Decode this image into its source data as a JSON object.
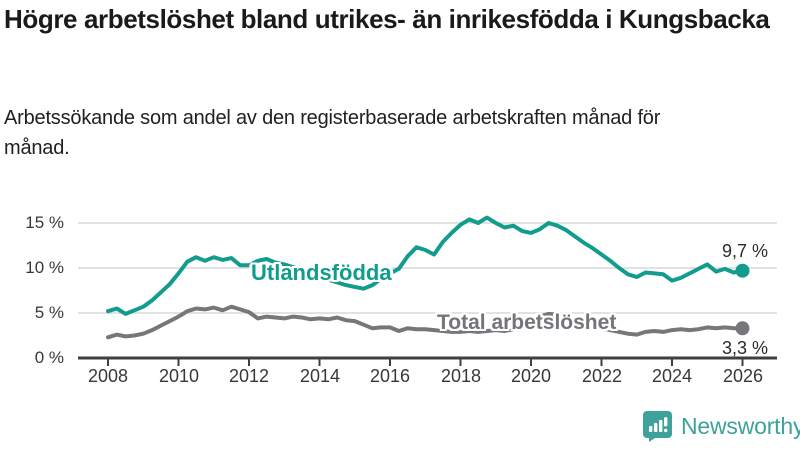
{
  "header": {
    "title": "Högre arbetslöshet bland utrikes- än inrikesfödda i Kungsbacka",
    "subtitle": "Arbetssökande som andel av den registerbaserade arbetskraften månad för månad."
  },
  "chart_data": {
    "type": "line",
    "title": "Högre arbetslöshet bland utrikes- än inrikesfödda i Kungsbacka",
    "subtitle": "Arbetssökande som andel av den registerbaserade arbetskraften månad för månad.",
    "x_start": 2008,
    "x_step_years": 0.25,
    "x_tick_labels": [
      "2008",
      "2010",
      "2012",
      "2014",
      "2016",
      "2018",
      "2020",
      "2022",
      "2024",
      "2026"
    ],
    "y_ticks": [
      {
        "value": 15,
        "label": "15 %"
      },
      {
        "value": 10,
        "label": "10 %"
      },
      {
        "value": 5,
        "label": "5 %"
      },
      {
        "value": 0,
        "label": "0 %"
      }
    ],
    "ylim": [
      0,
      16.5
    ],
    "grid": "horizontal",
    "legend_position": "inline-labels",
    "series": [
      {
        "name": "Utlandsfödda",
        "color": "#119c8e",
        "end_label": "9,7 %",
        "end_value": 9.7,
        "values": [
          5.2,
          5.5,
          4.9,
          5.3,
          5.7,
          6.4,
          7.3,
          8.2,
          9.4,
          10.7,
          11.2,
          10.8,
          11.2,
          10.9,
          11.1,
          10.3,
          10.3,
          10.8,
          11.0,
          10.6,
          10.4,
          10.1,
          9.8,
          9.4,
          9.0,
          8.7,
          8.4,
          8.1,
          7.9,
          7.7,
          8.1,
          8.8,
          9.4,
          9.9,
          11.3,
          12.3,
          12.0,
          11.5,
          12.9,
          13.9,
          14.8,
          15.4,
          15.0,
          15.6,
          15.0,
          14.5,
          14.7,
          14.1,
          13.9,
          14.3,
          15.0,
          14.7,
          14.2,
          13.5,
          12.8,
          12.2,
          11.5,
          10.8,
          10.0,
          9.3,
          9.0,
          9.5,
          9.4,
          9.3,
          8.6,
          8.9,
          9.4,
          9.9,
          10.4,
          9.6,
          9.9,
          9.5,
          9.7
        ]
      },
      {
        "name": "Total arbetslöshet",
        "color": "#76767b",
        "end_label": "3,3 %",
        "end_value": 3.3,
        "values": [
          2.3,
          2.6,
          2.4,
          2.5,
          2.7,
          3.1,
          3.6,
          4.1,
          4.6,
          5.2,
          5.5,
          5.4,
          5.6,
          5.3,
          5.7,
          5.4,
          5.1,
          4.4,
          4.6,
          4.5,
          4.4,
          4.6,
          4.5,
          4.3,
          4.4,
          4.3,
          4.5,
          4.2,
          4.1,
          3.7,
          3.3,
          3.4,
          3.4,
          3.0,
          3.3,
          3.2,
          3.2,
          3.1,
          3.0,
          2.9,
          2.9,
          3.0,
          2.9,
          3.0,
          3.1,
          3.0,
          3.2,
          3.4,
          3.8,
          4.6,
          4.9,
          4.8,
          4.5,
          4.2,
          3.9,
          3.6,
          3.3,
          3.1,
          2.9,
          2.7,
          2.6,
          2.9,
          3.0,
          2.9,
          3.1,
          3.2,
          3.1,
          3.2,
          3.4,
          3.3,
          3.4,
          3.3,
          3.3
        ]
      }
    ]
  },
  "footer": {
    "brand": "Newsworthy",
    "brand_color": "#3ea29b",
    "logo_icon": "speech-bubble-bar-chart-icon"
  }
}
